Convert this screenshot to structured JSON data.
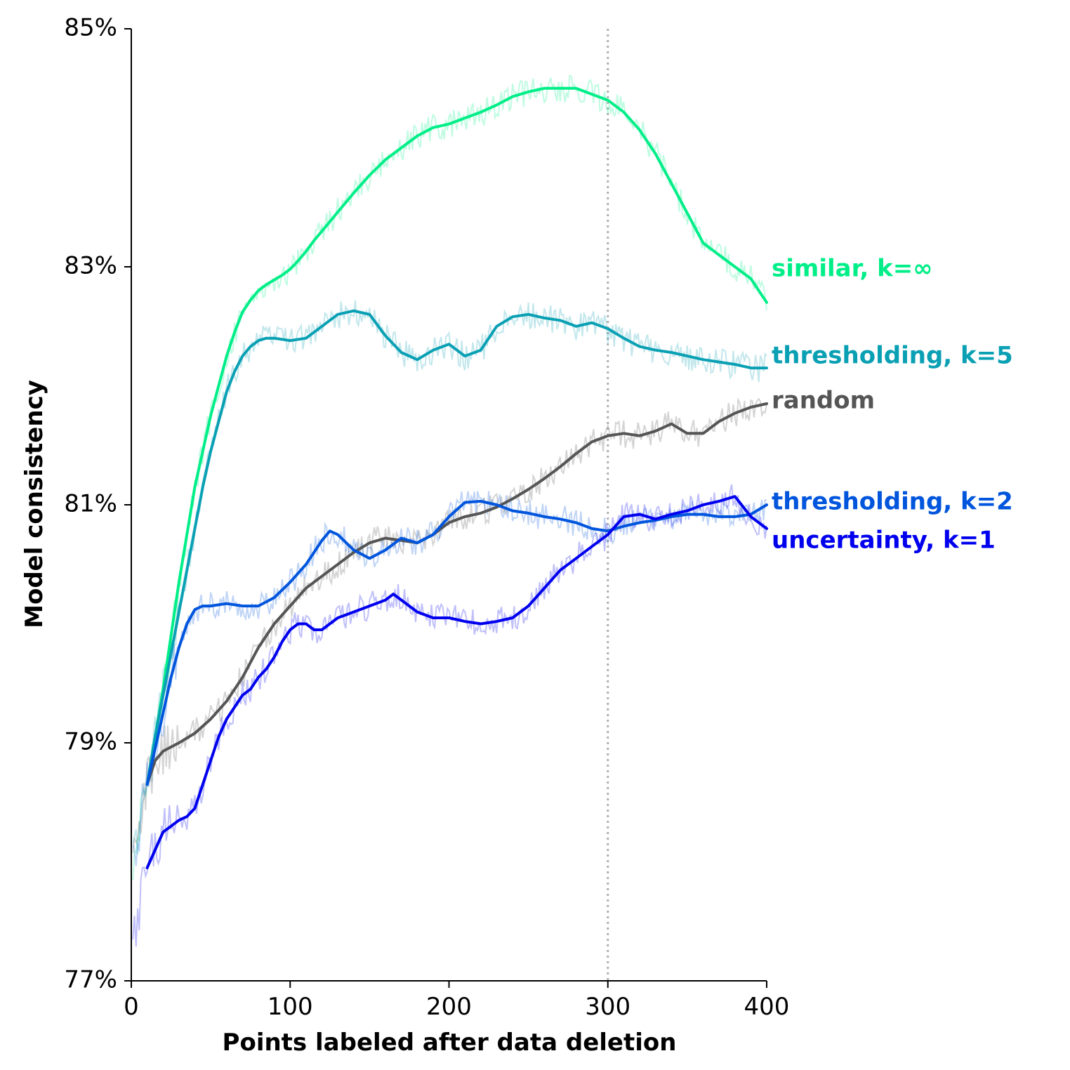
{
  "chart_data": {
    "type": "line",
    "title": "",
    "xlabel": "Points labeled after data deletion",
    "ylabel": "Model consistency",
    "xlim": [
      0,
      400
    ],
    "ylim": [
      77,
      85
    ],
    "xticks": [
      0,
      100,
      200,
      300,
      400
    ],
    "xtick_labels": [
      "0",
      "100",
      "200",
      "300",
      "400"
    ],
    "yticks": [
      77,
      79,
      81,
      83,
      85
    ],
    "ytick_labels": [
      "77%",
      "79%",
      "81%",
      "83%",
      "85%"
    ],
    "grid": false,
    "legend": "inline labels at right end of lines",
    "reference_line": {
      "x": 300,
      "style": "dotted",
      "color": "#b0b0b0"
    },
    "series": [
      {
        "name": "similar, k=∞",
        "color": "#00ee88",
        "x": [
          10,
          15,
          20,
          25,
          30,
          35,
          40,
          45,
          50,
          55,
          60,
          65,
          70,
          75,
          80,
          85,
          90,
          95,
          100,
          105,
          110,
          115,
          120,
          125,
          130,
          140,
          150,
          160,
          170,
          180,
          190,
          200,
          210,
          220,
          230,
          240,
          250,
          260,
          270,
          280,
          290,
          300,
          310,
          320,
          330,
          340,
          350,
          360,
          370,
          380,
          390,
          400
        ],
        "y": [
          78.65,
          79.05,
          79.45,
          79.9,
          80.35,
          80.75,
          81.15,
          81.45,
          81.75,
          82.0,
          82.25,
          82.45,
          82.62,
          82.72,
          82.8,
          82.85,
          82.89,
          82.93,
          82.98,
          83.05,
          83.13,
          83.22,
          83.3,
          83.38,
          83.46,
          83.62,
          83.77,
          83.9,
          84.0,
          84.1,
          84.17,
          84.2,
          84.25,
          84.3,
          84.36,
          84.43,
          84.47,
          84.5,
          84.5,
          84.5,
          84.45,
          84.4,
          84.3,
          84.15,
          83.95,
          83.7,
          83.45,
          83.2,
          83.1,
          83.0,
          82.9,
          82.7
        ]
      },
      {
        "name": "thresholding, k=5",
        "color": "#0aa0b4",
        "x": [
          10,
          15,
          20,
          25,
          30,
          35,
          40,
          45,
          50,
          55,
          60,
          65,
          70,
          75,
          80,
          85,
          90,
          95,
          100,
          110,
          120,
          130,
          140,
          150,
          160,
          170,
          180,
          190,
          200,
          210,
          220,
          230,
          240,
          250,
          260,
          270,
          280,
          290,
          300,
          310,
          320,
          330,
          340,
          350,
          360,
          370,
          380,
          390,
          400
        ],
        "y": [
          78.65,
          79.05,
          79.4,
          79.75,
          80.1,
          80.45,
          80.8,
          81.15,
          81.45,
          81.7,
          81.95,
          82.12,
          82.25,
          82.33,
          82.38,
          82.4,
          82.4,
          82.39,
          82.38,
          82.4,
          82.5,
          82.6,
          82.63,
          82.6,
          82.42,
          82.28,
          82.22,
          82.3,
          82.35,
          82.25,
          82.3,
          82.5,
          82.58,
          82.6,
          82.57,
          82.55,
          82.5,
          82.53,
          82.48,
          82.4,
          82.33,
          82.3,
          82.28,
          82.25,
          82.22,
          82.2,
          82.18,
          82.15,
          82.15
        ]
      },
      {
        "name": "random",
        "color": "#555555",
        "x": [
          10,
          15,
          20,
          30,
          40,
          50,
          60,
          70,
          80,
          90,
          100,
          110,
          120,
          130,
          140,
          150,
          160,
          170,
          180,
          190,
          200,
          210,
          220,
          230,
          240,
          250,
          260,
          270,
          280,
          290,
          300,
          310,
          320,
          330,
          340,
          350,
          360,
          370,
          380,
          390,
          400
        ],
        "y": [
          78.65,
          78.85,
          78.93,
          79.0,
          79.08,
          79.2,
          79.35,
          79.55,
          79.8,
          80.0,
          80.15,
          80.3,
          80.4,
          80.5,
          80.6,
          80.68,
          80.72,
          80.7,
          80.68,
          80.75,
          80.85,
          80.9,
          80.93,
          80.98,
          81.05,
          81.13,
          81.22,
          81.32,
          81.43,
          81.53,
          81.58,
          81.6,
          81.58,
          81.62,
          81.68,
          81.6,
          81.6,
          81.7,
          81.77,
          81.82,
          81.85
        ]
      },
      {
        "name": "thresholding, k=2",
        "color": "#0055dd",
        "x": [
          10,
          15,
          20,
          25,
          30,
          35,
          40,
          45,
          50,
          55,
          60,
          70,
          80,
          90,
          100,
          110,
          120,
          125,
          130,
          140,
          150,
          160,
          170,
          180,
          190,
          200,
          210,
          220,
          230,
          240,
          250,
          260,
          270,
          280,
          290,
          300,
          310,
          320,
          330,
          340,
          350,
          360,
          370,
          380,
          390,
          400
        ],
        "y": [
          78.65,
          78.95,
          79.25,
          79.55,
          79.8,
          80.0,
          80.12,
          80.15,
          80.15,
          80.16,
          80.17,
          80.15,
          80.15,
          80.22,
          80.35,
          80.5,
          80.7,
          80.78,
          80.75,
          80.62,
          80.55,
          80.62,
          80.72,
          80.68,
          80.75,
          80.9,
          81.02,
          81.03,
          81.0,
          80.95,
          80.93,
          80.9,
          80.88,
          80.85,
          80.8,
          80.78,
          80.82,
          80.85,
          80.87,
          80.9,
          80.92,
          80.92,
          80.9,
          80.9,
          80.92,
          81.0
        ]
      },
      {
        "name": "uncertainty, k=1",
        "color": "#0000ee",
        "x": [
          10,
          15,
          20,
          25,
          30,
          35,
          40,
          45,
          50,
          55,
          60,
          65,
          70,
          75,
          80,
          85,
          90,
          95,
          100,
          105,
          110,
          115,
          120,
          125,
          130,
          140,
          150,
          160,
          165,
          170,
          180,
          190,
          200,
          210,
          220,
          230,
          240,
          250,
          260,
          270,
          280,
          290,
          300,
          310,
          320,
          330,
          340,
          350,
          360,
          370,
          380,
          390,
          400
        ],
        "y": [
          77.95,
          78.1,
          78.25,
          78.3,
          78.35,
          78.38,
          78.45,
          78.65,
          78.85,
          79.05,
          79.2,
          79.3,
          79.4,
          79.45,
          79.55,
          79.62,
          79.72,
          79.85,
          79.95,
          80.0,
          80.0,
          79.95,
          79.95,
          80.0,
          80.05,
          80.1,
          80.15,
          80.2,
          80.25,
          80.2,
          80.1,
          80.05,
          80.05,
          80.02,
          80.0,
          80.02,
          80.05,
          80.15,
          80.3,
          80.45,
          80.55,
          80.65,
          80.75,
          80.9,
          80.92,
          80.88,
          80.92,
          80.95,
          81.0,
          81.03,
          81.07,
          80.9,
          80.8
        ]
      }
    ]
  }
}
